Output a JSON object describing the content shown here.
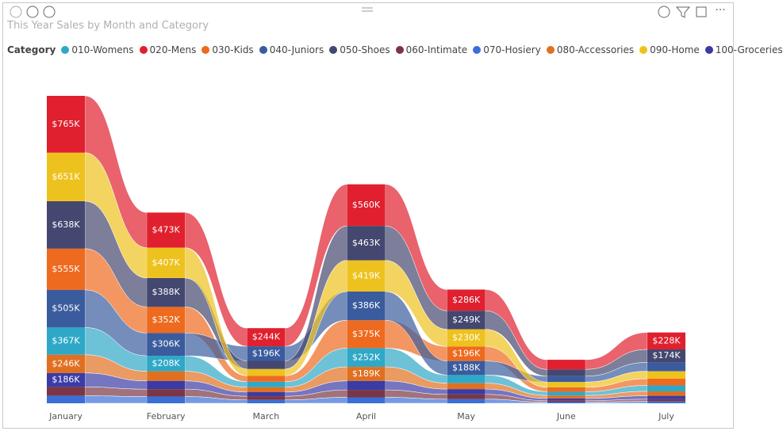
{
  "chart_data": {
    "type": "ribbon",
    "title": "This Year Sales by Month and Category",
    "legend_title": "Category",
    "categories": [
      "January",
      "February",
      "March",
      "April",
      "May",
      "June",
      "July"
    ],
    "series": [
      {
        "name": "010-Womens",
        "color": "#2FA8C8",
        "values": [
          367,
          208,
          75,
          252,
          110,
          50,
          80
        ],
        "value_labels": [
          "$367K",
          "$208K",
          null,
          "$252K",
          null,
          null,
          null
        ]
      },
      {
        "name": "020-Mens",
        "color": "#E0202E",
        "values": [
          765,
          473,
          244,
          560,
          286,
          130,
          228
        ],
        "value_labels": [
          "$765K",
          "$473K",
          "$244K",
          "$560K",
          "$286K",
          null,
          "$228K"
        ]
      },
      {
        "name": "030-Kids",
        "color": "#EE6A1F",
        "values": [
          555,
          352,
          80,
          375,
          196,
          60,
          90
        ],
        "value_labels": [
          "$555K",
          "$352K",
          null,
          "$375K",
          "$196K",
          null,
          null
        ]
      },
      {
        "name": "040-Juniors",
        "color": "#3A5C9E",
        "values": [
          505,
          306,
          196,
          386,
          188,
          80,
          120
        ],
        "value_labels": [
          "$505K",
          "$306K",
          "$196K",
          "$386K",
          "$188K",
          null,
          null
        ]
      },
      {
        "name": "050-Shoes",
        "color": "#44476F",
        "values": [
          638,
          388,
          110,
          463,
          249,
          90,
          174
        ],
        "value_labels": [
          "$638K",
          "$388K",
          null,
          "$463K",
          "$249K",
          null,
          "$174K"
        ]
      },
      {
        "name": "060-Intimate",
        "color": "#7B3645",
        "values": [
          120,
          100,
          50,
          100,
          65,
          20,
          30
        ],
        "value_labels": [
          null,
          null,
          null,
          null,
          null,
          null,
          null
        ]
      },
      {
        "name": "070-Hosiery",
        "color": "#3A6FD8",
        "values": [
          100,
          90,
          45,
          80,
          55,
          15,
          25
        ],
        "value_labels": [
          null,
          null,
          null,
          null,
          null,
          null,
          null
        ]
      },
      {
        "name": "080-Accessories",
        "color": "#E07020",
        "values": [
          246,
          130,
          65,
          189,
          80,
          40,
          60
        ],
        "value_labels": [
          "$246K",
          null,
          null,
          "$189K",
          null,
          null,
          null
        ]
      },
      {
        "name": "090-Home",
        "color": "#EEC21E",
        "values": [
          651,
          407,
          90,
          419,
          230,
          70,
          100
        ],
        "value_labels": [
          "$651K",
          "$407K",
          null,
          "$419K",
          "$230K",
          null,
          null
        ]
      },
      {
        "name": "100-Groceries",
        "color": "#3B3BA5",
        "values": [
          186,
          110,
          55,
          120,
          70,
          30,
          45
        ],
        "value_labels": [
          "$186K",
          null,
          null,
          null,
          null,
          null,
          null
        ]
      }
    ]
  }
}
